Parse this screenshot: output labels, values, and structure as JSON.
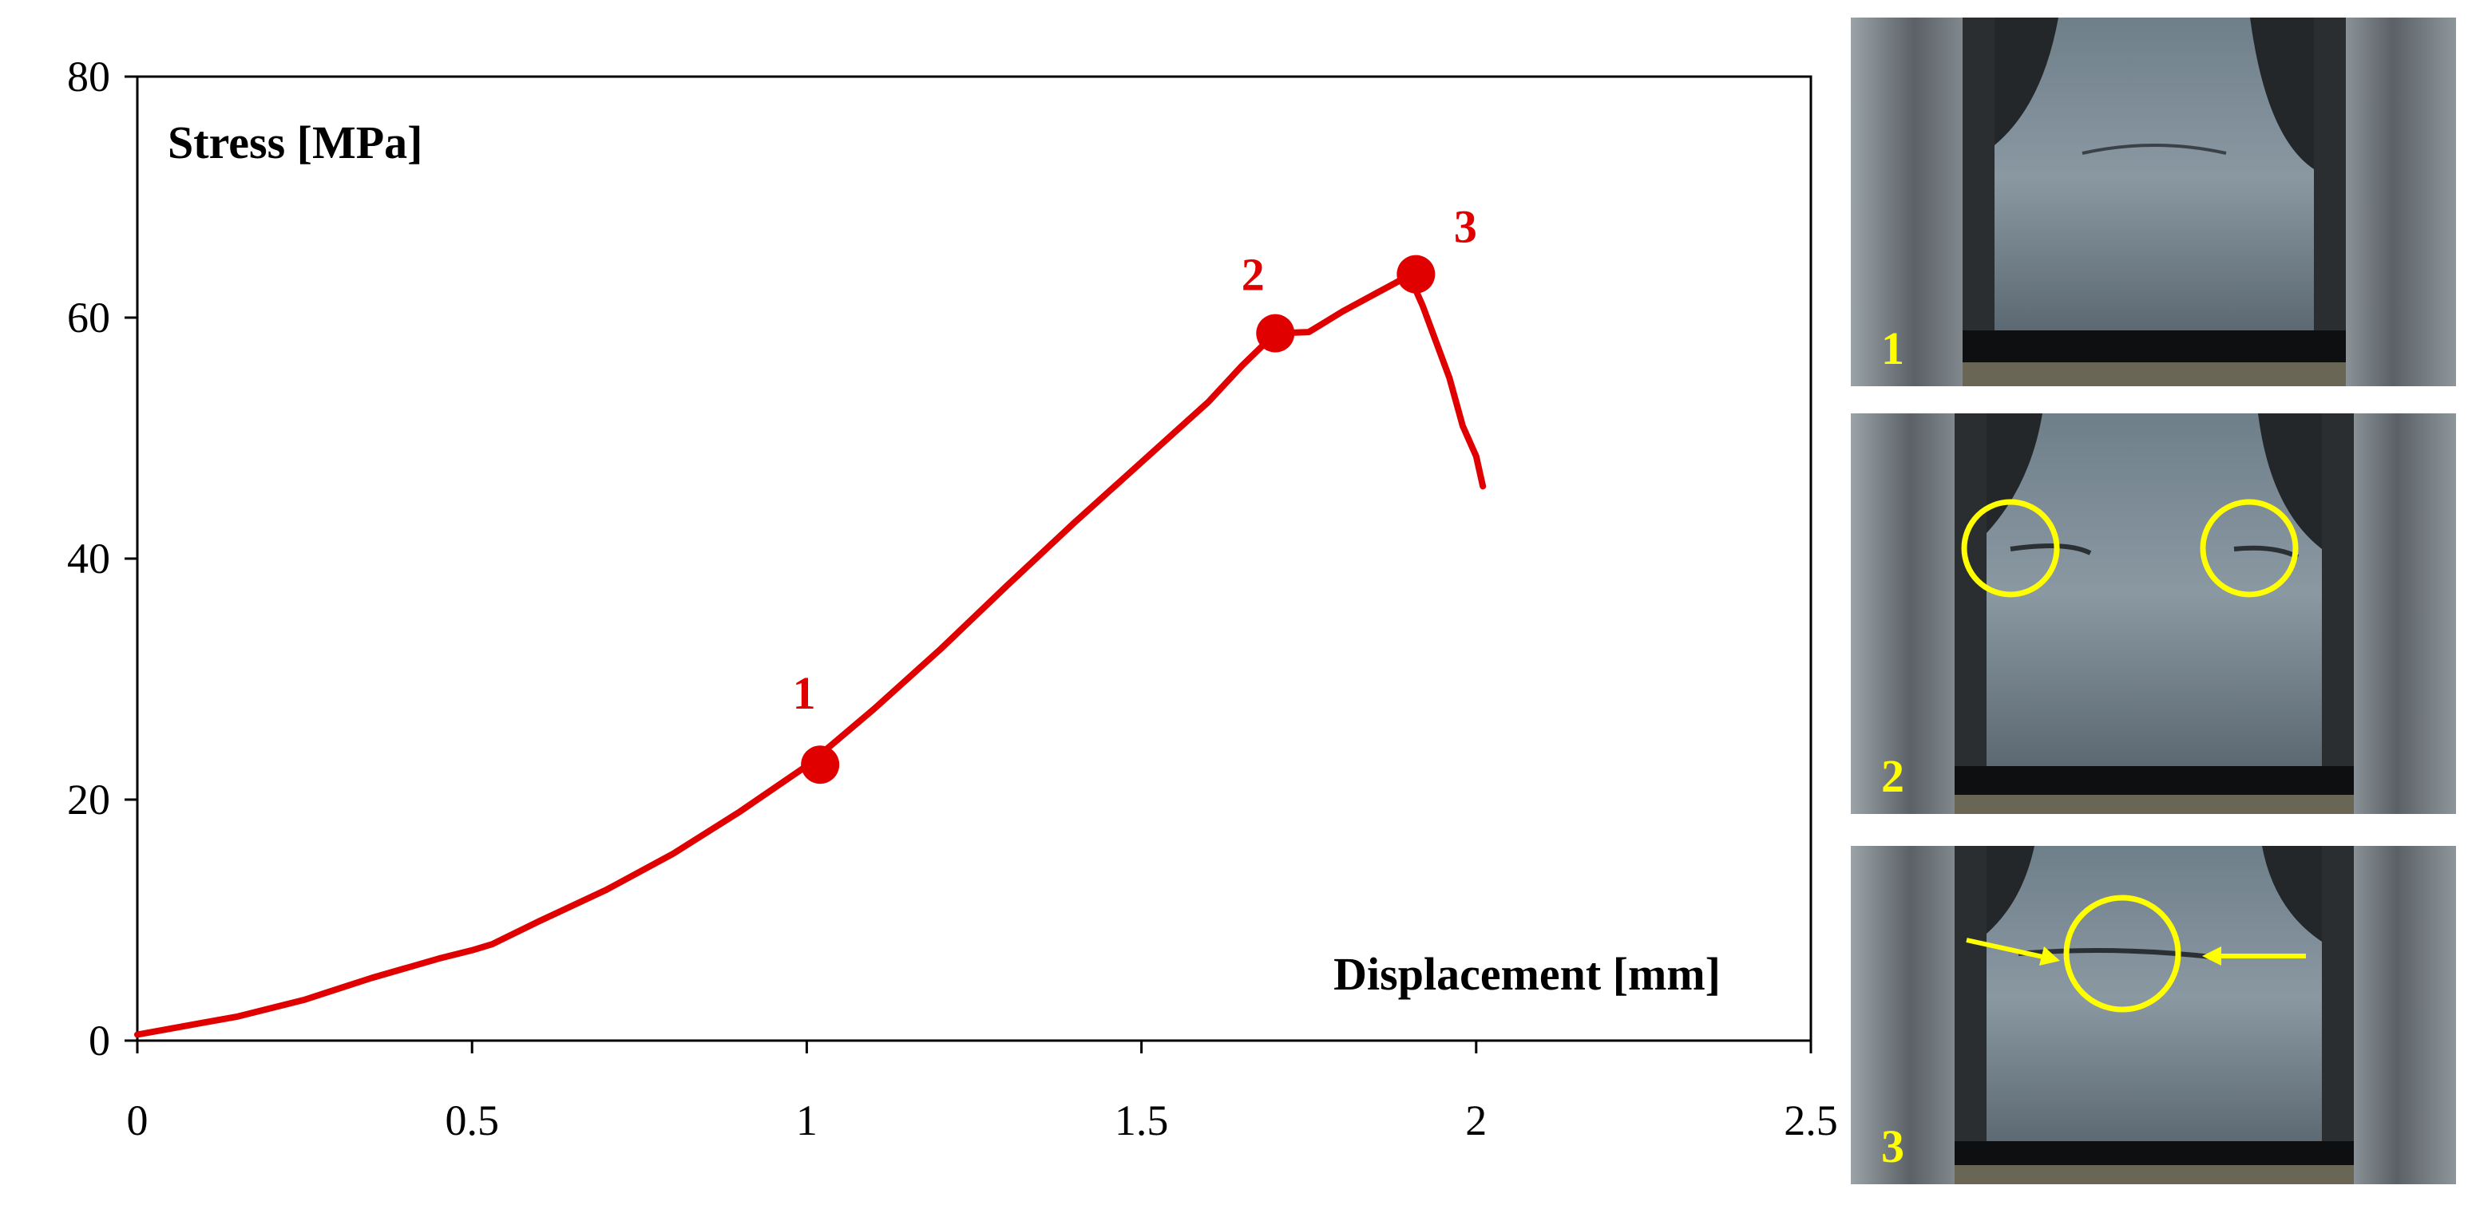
{
  "chart_data": {
    "type": "line",
    "xlabel": "Displacement [mm]",
    "ylabel": "Stress [MPa]",
    "xlim": [
      0,
      2.5
    ],
    "ylim": [
      0,
      80
    ],
    "xticks": [
      0,
      0.5,
      1,
      1.5,
      2,
      2.5
    ],
    "xtick_labels": [
      "0",
      "0.5",
      "1",
      "1.5",
      "2",
      "2.5"
    ],
    "yticks": [
      0,
      20,
      40,
      60,
      80
    ],
    "ytick_labels": [
      "0",
      "20",
      "40",
      "60",
      "80"
    ],
    "grid": false,
    "series": [
      {
        "color": "#e00000",
        "x": [
          0,
          0.05,
          0.1,
          0.15,
          0.2,
          0.25,
          0.3,
          0.35,
          0.4,
          0.45,
          0.5,
          0.53,
          0.6,
          0.7,
          0.8,
          0.9,
          1.0,
          1.1,
          1.2,
          1.3,
          1.4,
          1.5,
          1.6,
          1.65,
          1.7,
          1.75,
          1.8,
          1.85,
          1.9,
          1.92,
          1.94,
          1.96,
          1.98,
          2.0,
          2.01
        ],
        "y": [
          0.5,
          1.0,
          1.5,
          2.0,
          2.7,
          3.4,
          4.3,
          5.2,
          6.0,
          6.8,
          7.5,
          8.0,
          9.9,
          12.5,
          15.5,
          19.0,
          22.8,
          27.5,
          32.5,
          37.8,
          43.0,
          48.0,
          53.0,
          56.0,
          58.7,
          58.8,
          60.5,
          62.0,
          63.5,
          61.0,
          58.0,
          55.0,
          51.0,
          48.5,
          46.0
        ]
      }
    ],
    "points": [
      {
        "label": "1",
        "x": 1.02,
        "y": 22.9,
        "color": "#e00000"
      },
      {
        "label": "2",
        "x": 1.7,
        "y": 58.7,
        "color": "#e00000"
      },
      {
        "label": "3",
        "x": 1.91,
        "y": 63.6,
        "color": "#e00000"
      }
    ]
  },
  "photos": [
    {
      "label": "1",
      "circle_count": 0
    },
    {
      "label": "2",
      "circle_count": 2
    },
    {
      "label": "3",
      "circle_count": 1,
      "arrow_count": 2
    }
  ],
  "colors": {
    "curve": "#e00000",
    "photo_marker": "#ffff00",
    "axis": "#000000"
  }
}
